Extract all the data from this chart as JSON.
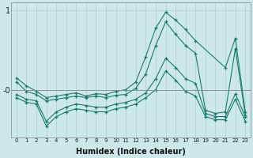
{
  "xlabel": "Humidex (Indice chaleur)",
  "ylabel": "",
  "bg_color": "#cce8e8",
  "line_color": "#1a7a6e",
  "grid_color": "#b0cccc",
  "xlim": [
    -0.5,
    23.5
  ],
  "ylim": [
    -0.6,
    1.1
  ],
  "xticks": [
    0,
    1,
    2,
    3,
    4,
    5,
    6,
    7,
    8,
    9,
    10,
    11,
    12,
    13,
    14,
    15,
    16,
    17,
    18,
    19,
    20,
    21,
    22,
    23
  ],
  "yticks": [
    -0.0,
    1.0
  ],
  "ytick_labels": [
    "-0",
    "1"
  ],
  "series": [
    {
      "x": [
        0,
        1,
        2,
        3,
        4,
        5,
        6,
        7,
        8,
        9,
        10,
        11,
        12,
        13,
        14,
        15,
        16,
        17,
        18,
        21,
        22,
        23
      ],
      "y": [
        0.15,
        0.05,
        -0.02,
        -0.1,
        -0.08,
        -0.06,
        -0.04,
        -0.08,
        -0.05,
        -0.06,
        -0.02,
        0.0,
        0.1,
        0.42,
        0.78,
        0.98,
        0.88,
        0.76,
        0.62,
        0.28,
        0.65,
        -0.28
      ]
    },
    {
      "x": [
        0,
        1,
        2,
        3,
        4,
        5,
        6,
        7,
        8,
        9,
        10,
        11,
        12,
        13,
        14,
        15,
        16,
        17,
        18,
        19,
        20,
        21,
        22,
        23
      ],
      "y": [
        0.1,
        -0.02,
        -0.06,
        -0.14,
        -0.12,
        -0.1,
        -0.08,
        -0.1,
        -0.08,
        -0.1,
        -0.07,
        -0.06,
        0.02,
        0.2,
        0.56,
        0.86,
        0.7,
        0.56,
        0.46,
        -0.26,
        -0.3,
        -0.28,
        0.52,
        -0.32
      ]
    },
    {
      "x": [
        0,
        1,
        2,
        3,
        4,
        5,
        6,
        7,
        8,
        9,
        10,
        11,
        12,
        13,
        14,
        15,
        16,
        17,
        18,
        19,
        20,
        21,
        22,
        23
      ],
      "y": [
        -0.06,
        -0.12,
        -0.14,
        -0.4,
        -0.28,
        -0.22,
        -0.18,
        -0.2,
        -0.22,
        -0.22,
        -0.18,
        -0.16,
        -0.12,
        -0.04,
        0.14,
        0.4,
        0.28,
        0.14,
        0.08,
        -0.3,
        -0.34,
        -0.34,
        -0.05,
        -0.34
      ]
    },
    {
      "x": [
        0,
        1,
        2,
        3,
        4,
        5,
        6,
        7,
        8,
        9,
        10,
        11,
        12,
        13,
        14,
        15,
        16,
        17,
        18,
        19,
        20,
        21,
        22,
        23
      ],
      "y": [
        -0.1,
        -0.16,
        -0.18,
        -0.46,
        -0.34,
        -0.28,
        -0.24,
        -0.26,
        -0.28,
        -0.28,
        -0.24,
        -0.22,
        -0.18,
        -0.1,
        0.0,
        0.24,
        0.12,
        -0.02,
        -0.08,
        -0.34,
        -0.38,
        -0.38,
        -0.12,
        -0.4
      ]
    }
  ]
}
